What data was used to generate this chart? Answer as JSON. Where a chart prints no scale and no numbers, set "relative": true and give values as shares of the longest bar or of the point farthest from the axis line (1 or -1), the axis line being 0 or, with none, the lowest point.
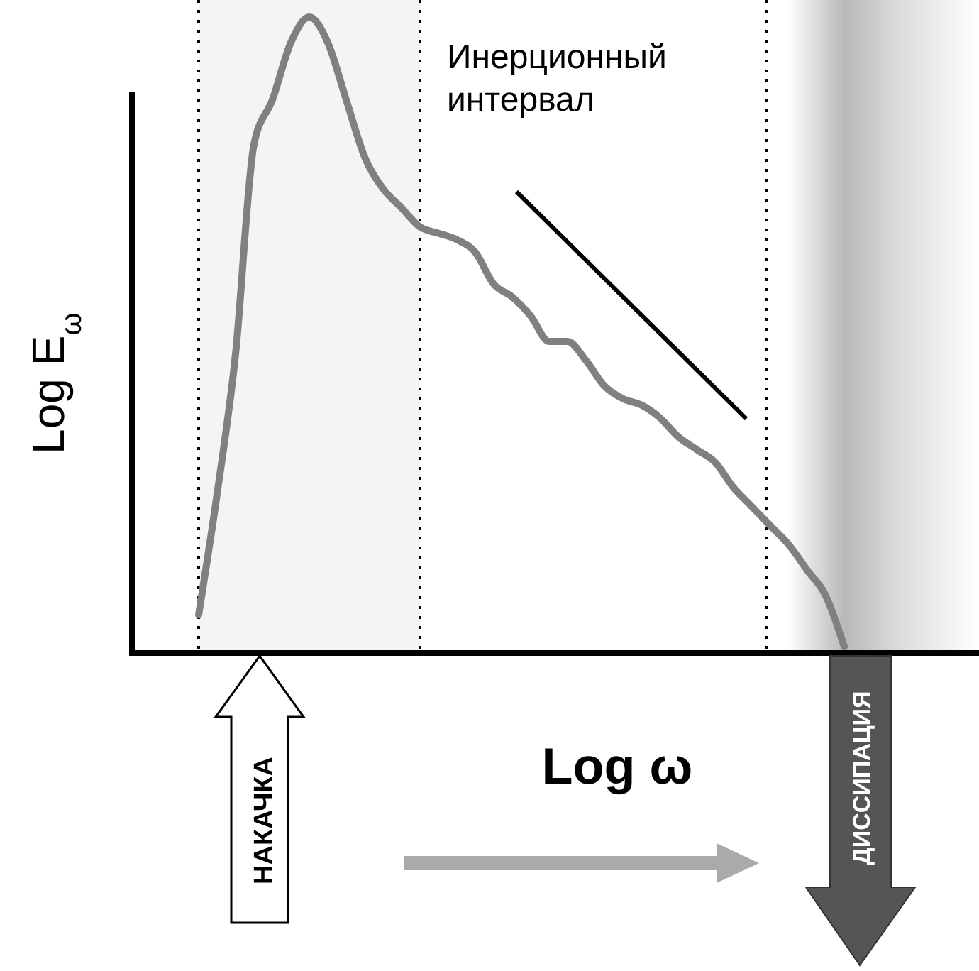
{
  "chart_data": {
    "type": "line",
    "relative": true,
    "xlabel": "Log ω",
    "ylabel": "Log E$_{ω}$",
    "categories": [
      null,
      null,
      null,
      null,
      null,
      null,
      null,
      null,
      null,
      null,
      null,
      null,
      null,
      null,
      null,
      null,
      null,
      null,
      null,
      null,
      null,
      null,
      null,
      null,
      null,
      null,
      null,
      null,
      null,
      null,
      null,
      null,
      null,
      null,
      null,
      null
    ],
    "series": [
      {
        "color": "#808080",
        "values": [
          0.06,
          0.25,
          0.47,
          0.8,
          0.87,
          0.96,
          1,
          0.96,
          0.87,
          0.78,
          0.73,
          0.7,
          0.67,
          0.66,
          0.65,
          0.63,
          0.58,
          0.56,
          0.53,
          0.49,
          0.49,
          0.46,
          0.42,
          0.4,
          0.39,
          0.37,
          0.34,
          0.32,
          0.3,
          0.26,
          0.23,
          0.2,
          0.17,
          0.13,
          0.09,
          0.01
        ]
      }
    ],
    "annotations": [
      "Инерционный интервал",
      "НАКАЧКА",
      "ДИССИПАЦИЯ"
    ],
    "line_style": "solid"
  }
}
